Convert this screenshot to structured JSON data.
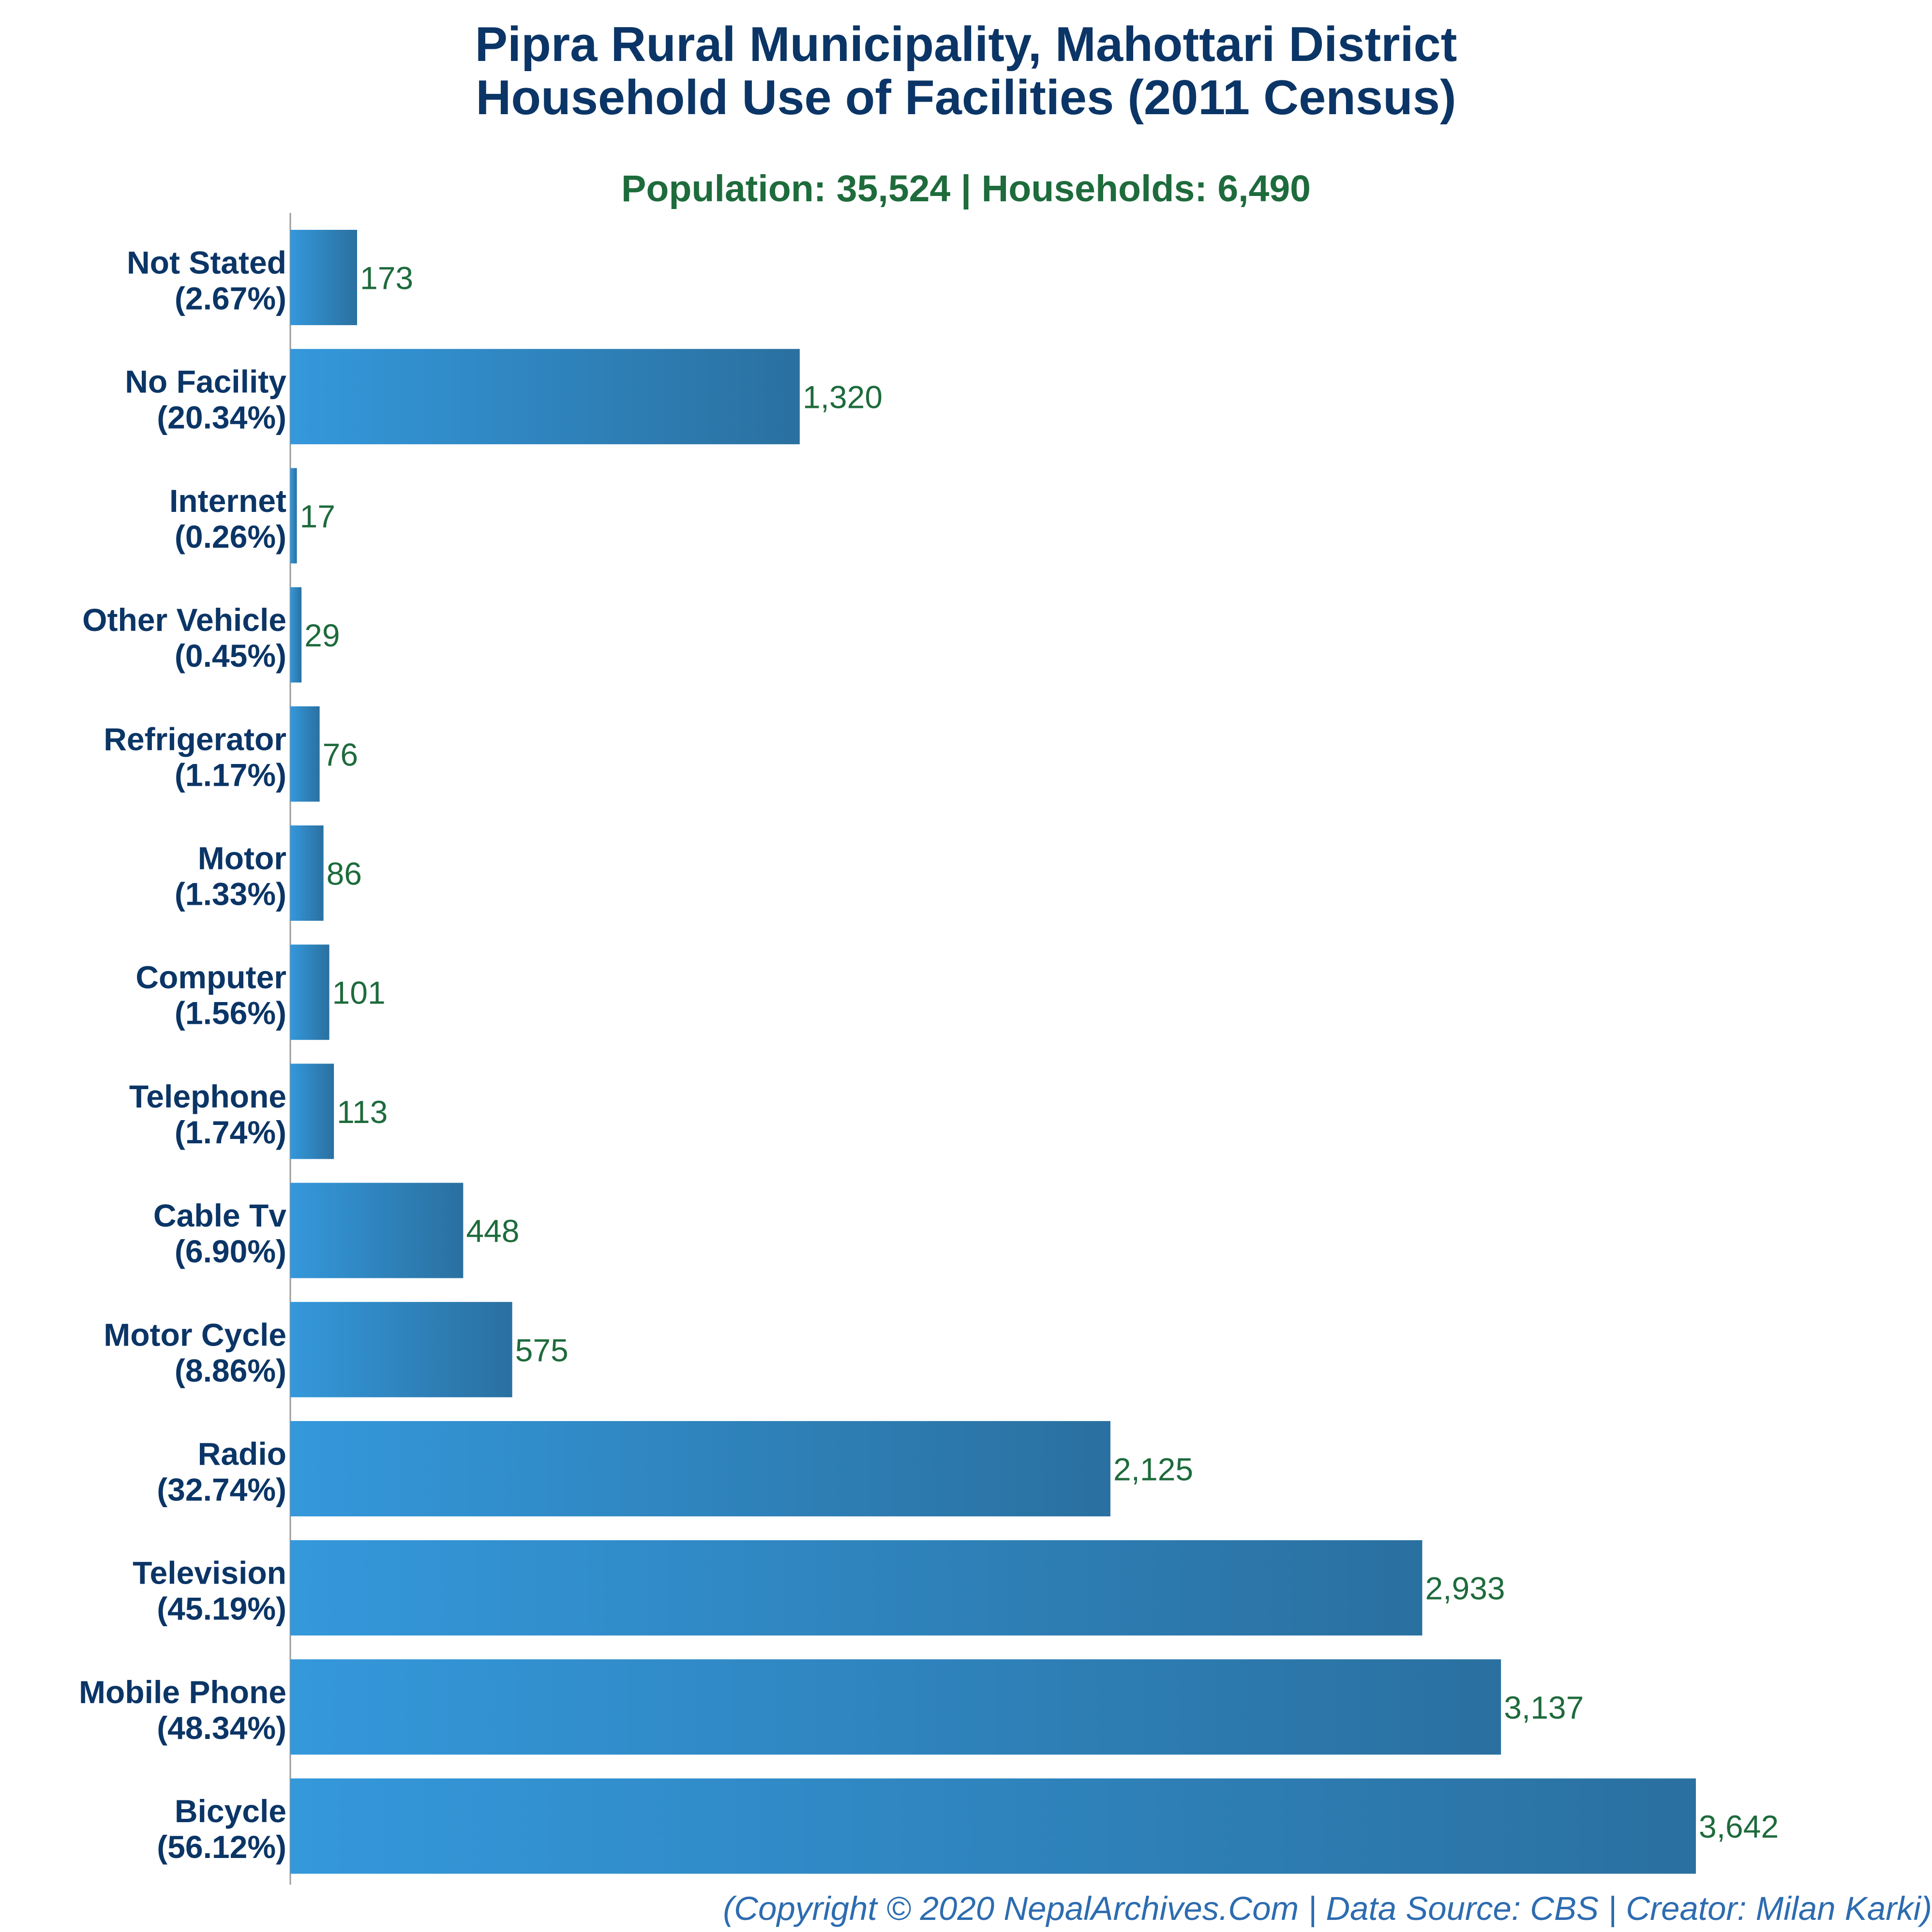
{
  "title_line1": "Pipra Rural Municipality, Mahottari District",
  "title_line2": "Household Use of Facilities (2011 Census)",
  "subtitle": "Population: 35,524 | Households: 6,490",
  "footer": "(Copyright © 2020 NepalArchives.Com | Data Source: CBS | Creator: Milan Karki)",
  "colors": {
    "title": "#0b3566",
    "subtitle": "#1e6b3c",
    "bar_light": "#3498db",
    "bar_dark": "#2a70a0",
    "value_label": "#1e6b3c",
    "footer": "#2d6cb0"
  },
  "chart_data": {
    "type": "bar",
    "orientation": "horizontal",
    "title": "Pipra Rural Municipality, Mahottari District Household Use of Facilities (2011 Census)",
    "subtitle": "Population: 35,524 | Households: 6,490",
    "xlabel": "",
    "ylabel": "",
    "grid": false,
    "legend": "none",
    "xlim": [
      0,
      3642
    ],
    "categories": [
      {
        "name": "Not Stated",
        "pct": "(2.67%)",
        "value": 173,
        "value_label": "173"
      },
      {
        "name": "No Facility",
        "pct": "(20.34%)",
        "value": 1320,
        "value_label": "1,320"
      },
      {
        "name": "Internet",
        "pct": "(0.26%)",
        "value": 17,
        "value_label": "17"
      },
      {
        "name": "Other Vehicle",
        "pct": "(0.45%)",
        "value": 29,
        "value_label": "29"
      },
      {
        "name": "Refrigerator",
        "pct": "(1.17%)",
        "value": 76,
        "value_label": "76"
      },
      {
        "name": "Motor",
        "pct": "(1.33%)",
        "value": 86,
        "value_label": "86"
      },
      {
        "name": "Computer",
        "pct": "(1.56%)",
        "value": 101,
        "value_label": "101"
      },
      {
        "name": "Telephone",
        "pct": "(1.74%)",
        "value": 113,
        "value_label": "113"
      },
      {
        "name": "Cable Tv",
        "pct": "(6.90%)",
        "value": 448,
        "value_label": "448"
      },
      {
        "name": "Motor Cycle",
        "pct": "(8.86%)",
        "value": 575,
        "value_label": "575"
      },
      {
        "name": "Radio",
        "pct": "(32.74%)",
        "value": 2125,
        "value_label": "2,125"
      },
      {
        "name": "Television",
        "pct": "(45.19%)",
        "value": 2933,
        "value_label": "2,933"
      },
      {
        "name": "Mobile Phone",
        "pct": "(48.34%)",
        "value": 3137,
        "value_label": "3,137"
      },
      {
        "name": "Bicycle",
        "pct": "(56.12%)",
        "value": 3642,
        "value_label": "3,642"
      }
    ]
  }
}
